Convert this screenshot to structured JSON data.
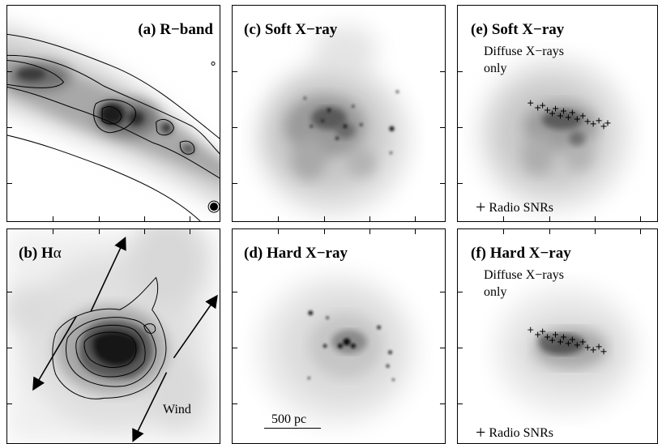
{
  "panels": {
    "a": {
      "title": "(a) R−band"
    },
    "b": {
      "title_prefix": "(b) H",
      "title_greek": "α",
      "wind_label": "Wind"
    },
    "c": {
      "title": "(c) Soft X−ray"
    },
    "d": {
      "title": "(d) Hard X−ray",
      "scalebar_label": "500 pc"
    },
    "e": {
      "title": "(e) Soft X−ray",
      "note_line1": "Diffuse X−rays",
      "note_line2": "only",
      "legend_symbol": "+",
      "legend_label": "Radio SNRs"
    },
    "f": {
      "title": "(f) Hard X−ray",
      "note_line1": "Diffuse X−rays",
      "note_line2": "only",
      "legend_symbol": "+",
      "legend_label": "Radio SNRs"
    }
  }
}
